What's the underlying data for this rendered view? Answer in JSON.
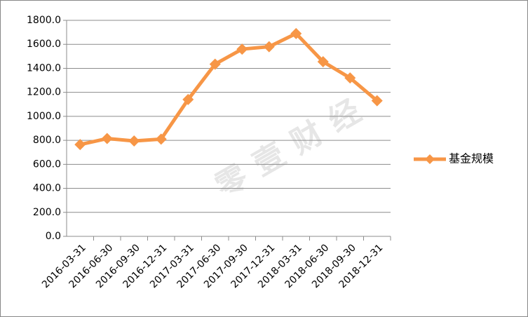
{
  "chart_data": {
    "type": "line",
    "categories": [
      "2016-03-31",
      "2016-06-30",
      "2016-09-30",
      "2016-12-31",
      "2017-03-31",
      "2017-06-30",
      "2017-09-30",
      "2017-12-31",
      "2018-03-31",
      "2018-06-30",
      "2018-09-30",
      "2018-12-31"
    ],
    "series": [
      {
        "name": "基金规模",
        "color": "#f79646",
        "values": [
          765,
          815,
          795,
          810,
          1140,
          1435,
          1560,
          1580,
          1690,
          1455,
          1320,
          1130
        ]
      }
    ],
    "ylim": [
      0,
      1800
    ],
    "yticks": [
      {
        "value": 0,
        "label": "0.0"
      },
      {
        "value": 200,
        "label": "200.0"
      },
      {
        "value": 400,
        "label": "400.0"
      },
      {
        "value": 600,
        "label": "600.0"
      },
      {
        "value": 800,
        "label": "800.0"
      },
      {
        "value": 1000,
        "label": "1000.0"
      },
      {
        "value": 1200,
        "label": "1200.0"
      },
      {
        "value": 1400,
        "label": "1400.0"
      },
      {
        "value": 1600,
        "label": "1600.0"
      },
      {
        "value": 1800,
        "label": "1800.0"
      }
    ],
    "grid": true,
    "legend": "right",
    "watermark": "零壹财经"
  }
}
